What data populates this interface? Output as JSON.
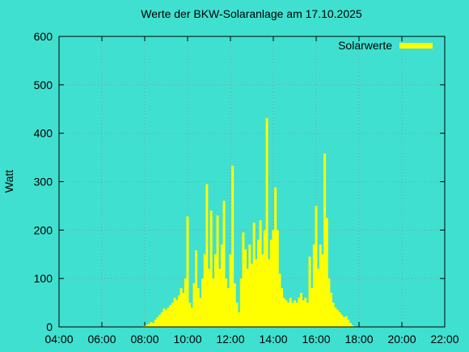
{
  "chart_data": {
    "type": "impulses",
    "title": "Werte der BKW-Solaranlage am 17.10.2025",
    "ylabel": "Watt",
    "series": [
      {
        "name": "Solarwerte",
        "color": "#ffff00",
        "x": [
          7.8,
          7.9,
          8.0,
          8.1,
          8.2,
          8.3,
          8.4,
          8.5,
          8.6,
          8.7,
          8.8,
          8.9,
          9.0,
          9.1,
          9.2,
          9.3,
          9.4,
          9.5,
          9.6,
          9.7,
          9.8,
          9.9,
          10.0,
          10.1,
          10.2,
          10.3,
          10.4,
          10.5,
          10.6,
          10.7,
          10.8,
          10.9,
          11.0,
          11.1,
          11.2,
          11.3,
          11.4,
          11.5,
          11.6,
          11.7,
          11.8,
          11.9,
          12.0,
          12.1,
          12.2,
          12.3,
          12.4,
          12.5,
          12.6,
          12.7,
          12.8,
          12.9,
          13.0,
          13.1,
          13.2,
          13.3,
          13.4,
          13.5,
          13.6,
          13.7,
          13.8,
          13.9,
          14.0,
          14.1,
          14.2,
          14.3,
          14.4,
          14.5,
          14.6,
          14.7,
          14.8,
          14.9,
          15.0,
          15.1,
          15.2,
          15.3,
          15.4,
          15.5,
          15.6,
          15.7,
          15.8,
          15.9,
          16.0,
          16.1,
          16.2,
          16.3,
          16.4,
          16.5,
          16.6,
          16.7,
          16.8,
          16.9,
          17.0,
          17.1,
          17.2,
          17.3,
          17.4,
          17.5,
          17.6,
          17.7,
          17.8
        ],
        "values": [
          0,
          1,
          2,
          4,
          6,
          10,
          8,
          15,
          20,
          25,
          30,
          38,
          35,
          40,
          45,
          50,
          60,
          55,
          65,
          80,
          70,
          100,
          228,
          50,
          40,
          90,
          158,
          80,
          60,
          100,
          150,
          295,
          120,
          240,
          100,
          150,
          230,
          120,
          170,
          260,
          100,
          80,
          150,
          333,
          90,
          50,
          30,
          100,
          195,
          160,
          120,
          170,
          130,
          215,
          140,
          180,
          220,
          150,
          200,
          431,
          140,
          180,
          200,
          288,
          200,
          110,
          80,
          60,
          55,
          50,
          60,
          50,
          55,
          50,
          60,
          70,
          55,
          60,
          50,
          145,
          80,
          170,
          250,
          120,
          170,
          150,
          358,
          225,
          100,
          70,
          50,
          40,
          35,
          30,
          25,
          20,
          22,
          15,
          8,
          3,
          0
        ]
      }
    ],
    "xlim": [
      4,
      22
    ],
    "xticks": [
      {
        "value": 4,
        "label": "04:00"
      },
      {
        "value": 6,
        "label": "06:00"
      },
      {
        "value": 8,
        "label": "08:00"
      },
      {
        "value": 10,
        "label": "10:00"
      },
      {
        "value": 12,
        "label": "12:00"
      },
      {
        "value": 14,
        "label": "14:00"
      },
      {
        "value": 16,
        "label": "16:00"
      },
      {
        "value": 18,
        "label": "18:00"
      },
      {
        "value": 20,
        "label": "20:00"
      },
      {
        "value": 22,
        "label": "22:00"
      }
    ],
    "ylim": [
      0,
      600
    ],
    "yticks": [
      0,
      100,
      200,
      300,
      400,
      500,
      600
    ],
    "grid": true,
    "legend": "top-right"
  }
}
